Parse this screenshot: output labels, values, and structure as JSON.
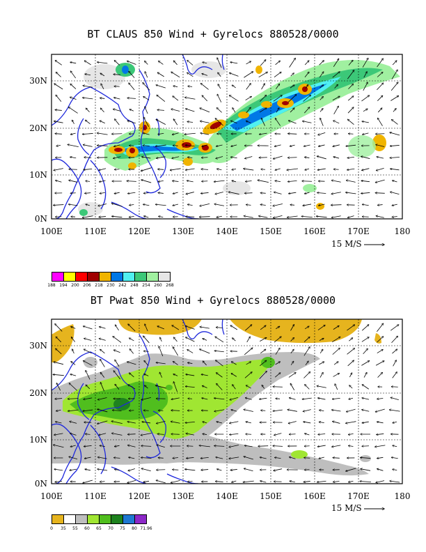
{
  "panels": [
    {
      "id": "top",
      "title": "BT CLAUS 850 Wind + Gyrelocs 880528/0000",
      "lat_labels": [
        "30N",
        "20N",
        "10N",
        "0N"
      ],
      "lon_labels": [
        "100E",
        "110E",
        "120E",
        "130E",
        "140E",
        "150E",
        "160E",
        "170E",
        "180"
      ],
      "scale_label": "15 M/S",
      "legend": {
        "colors": [
          "#ff00ff",
          "#ffff00",
          "#ff0000",
          "#a00000",
          "#f0b400",
          "#0078e6",
          "#50f0f0",
          "#3cc878",
          "#a0f0a0",
          "#e6e6e6"
        ],
        "labels": [
          "188",
          "194",
          "200",
          "206",
          "218",
          "230",
          "242",
          "248",
          "254",
          "260",
          "268"
        ]
      }
    },
    {
      "id": "bottom",
      "title": "BT Pwat 850 Wind + Gyrelocs 880528/0000",
      "lat_labels": [
        "30N",
        "20N",
        "10N",
        "0N"
      ],
      "lon_labels": [
        "100E",
        "110E",
        "120E",
        "130E",
        "140E",
        "150E",
        "160E",
        "170E",
        "180"
      ],
      "scale_label": "15 M/S",
      "legend": {
        "colors": [
          "#e6b41e",
          "#ffffff",
          "#bebebe",
          "#a0e632",
          "#50be1e",
          "#1e821e",
          "#1e78d2",
          "#8c28c8"
        ],
        "labels": [
          "0",
          "35",
          "55",
          "60",
          "65",
          "70",
          "75",
          "80",
          "71.96"
        ]
      }
    }
  ]
}
